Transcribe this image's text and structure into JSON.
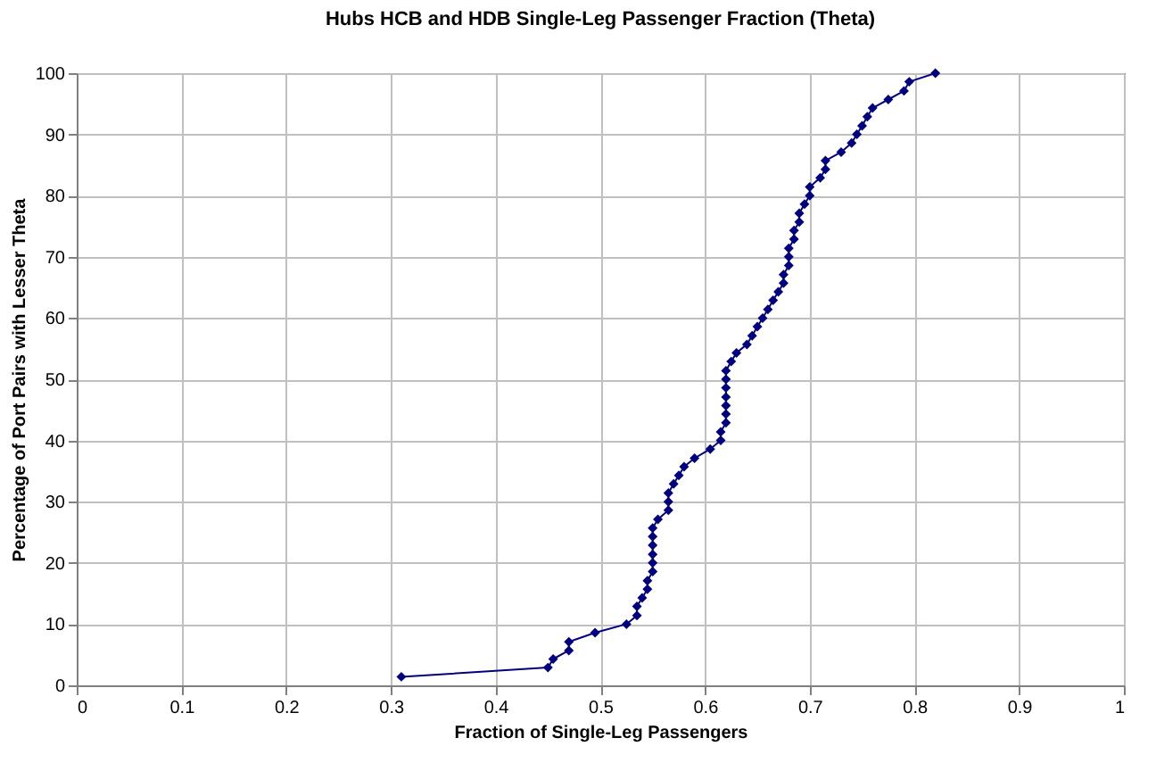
{
  "chart_data": {
    "type": "line",
    "title": "Hubs HCB and HDB Single-Leg Passenger Fraction (Theta)",
    "xlabel": "Fraction of Single-Leg Passengers",
    "ylabel": "Percentage of Port Pairs with Lesser Theta",
    "xlim": [
      0,
      1
    ],
    "xticks": [
      0,
      0.1,
      0.2,
      0.3,
      0.4,
      0.5,
      0.6,
      0.7,
      0.8,
      0.9,
      1
    ],
    "ylim": [
      0,
      100
    ],
    "yticks": [
      0,
      10,
      20,
      30,
      40,
      50,
      60,
      70,
      80,
      90,
      100
    ],
    "grid": true,
    "marker": "diamond",
    "line_style": "solid",
    "series": [
      {
        "color": "#000080",
        "x": [
          0.31,
          0.45,
          0.455,
          0.47,
          0.47,
          0.495,
          0.525,
          0.535,
          0.535,
          0.54,
          0.545,
          0.545,
          0.55,
          0.55,
          0.55,
          0.55,
          0.55,
          0.55,
          0.555,
          0.565,
          0.565,
          0.565,
          0.57,
          0.575,
          0.58,
          0.59,
          0.605,
          0.615,
          0.615,
          0.62,
          0.62,
          0.62,
          0.62,
          0.62,
          0.62,
          0.62,
          0.625,
          0.63,
          0.64,
          0.645,
          0.65,
          0.655,
          0.66,
          0.665,
          0.67,
          0.675,
          0.675,
          0.68,
          0.68,
          0.68,
          0.685,
          0.685,
          0.69,
          0.69,
          0.695,
          0.7,
          0.7,
          0.71,
          0.715,
          0.715,
          0.73,
          0.74,
          0.745,
          0.75,
          0.755,
          0.76,
          0.775,
          0.79,
          0.795,
          0.82
        ],
        "values": [
          1.4,
          2.9,
          4.3,
          5.7,
          7.1,
          8.6,
          10,
          11.4,
          12.9,
          14.3,
          15.7,
          17.1,
          18.6,
          20,
          21.4,
          22.9,
          24.3,
          25.7,
          27.1,
          28.6,
          30,
          31.4,
          32.9,
          34.3,
          35.7,
          37.1,
          38.6,
          40,
          41.4,
          42.9,
          44.3,
          45.7,
          47.1,
          48.6,
          50,
          51.4,
          52.9,
          54.3,
          55.7,
          57.1,
          58.6,
          60,
          61.4,
          62.9,
          64.3,
          65.7,
          67.1,
          68.6,
          70,
          71.4,
          72.9,
          74.3,
          75.7,
          77.1,
          78.6,
          80,
          81.4,
          82.9,
          84.3,
          85.7,
          87.1,
          88.6,
          90,
          91.4,
          92.9,
          94.3,
          95.7,
          97.1,
          98.6,
          100
        ]
      }
    ]
  }
}
